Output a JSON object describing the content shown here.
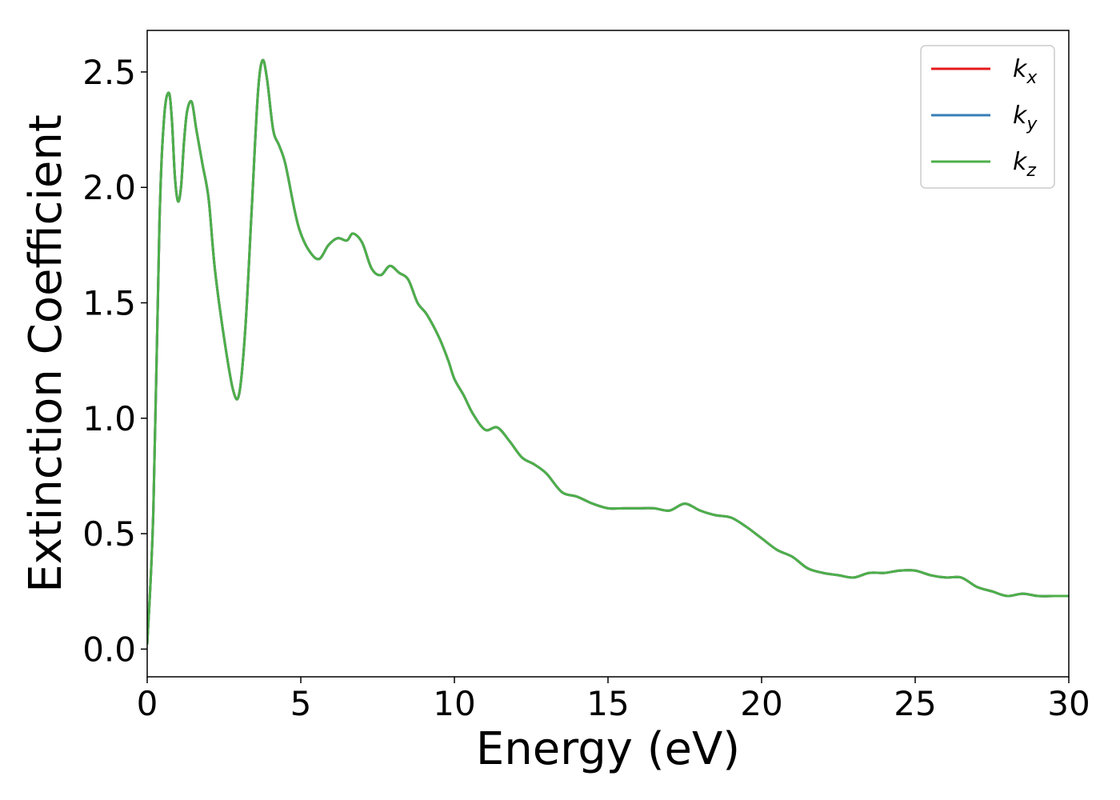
{
  "chart_data": {
    "type": "line",
    "title": "",
    "xlabel": "Energy (eV)",
    "ylabel": "Extinction Coefficient",
    "xlim": [
      0,
      30
    ],
    "ylim": [
      -0.12,
      2.68
    ],
    "xticks": [
      0,
      5,
      10,
      15,
      20,
      25,
      30
    ],
    "xtick_labels": [
      "0",
      "5",
      "10",
      "15",
      "20",
      "25",
      "30"
    ],
    "yticks": [
      0.0,
      0.5,
      1.0,
      1.5,
      2.0,
      2.5
    ],
    "ytick_labels": [
      "0.0",
      "0.5",
      "1.0",
      "1.5",
      "2.0",
      "2.5"
    ],
    "grid": false,
    "legend_position": "top-right",
    "x": [
      0,
      0.2,
      0.4,
      0.55,
      0.7,
      0.8,
      0.9,
      1.0,
      1.1,
      1.2,
      1.3,
      1.45,
      1.6,
      1.8,
      2.0,
      2.2,
      2.5,
      2.8,
      3.0,
      3.2,
      3.4,
      3.6,
      3.75,
      3.9,
      4.1,
      4.3,
      4.5,
      4.8,
      5.0,
      5.3,
      5.6,
      5.9,
      6.2,
      6.5,
      6.7,
      7.0,
      7.3,
      7.6,
      7.9,
      8.2,
      8.5,
      8.8,
      9.1,
      9.5,
      9.8,
      10.0,
      10.3,
      10.6,
      11.0,
      11.4,
      11.8,
      12.2,
      12.6,
      13.0,
      13.5,
      14.0,
      14.5,
      15.0,
      15.5,
      16.0,
      16.5,
      17.0,
      17.5,
      18.0,
      18.5,
      19.0,
      19.5,
      20.0,
      20.5,
      21.0,
      21.5,
      22.0,
      22.5,
      23.0,
      23.5,
      24.0,
      24.5,
      25.0,
      25.5,
      26.0,
      26.5,
      27.0,
      27.5,
      28.0,
      28.5,
      29.0,
      29.5,
      30.0
    ],
    "series": [
      {
        "name": "k_x",
        "color": "#e41a1c",
        "values": [
          0.02,
          0.6,
          1.85,
          2.3,
          2.41,
          2.3,
          2.05,
          1.94,
          2.0,
          2.2,
          2.33,
          2.37,
          2.25,
          2.1,
          1.95,
          1.65,
          1.35,
          1.12,
          1.11,
          1.4,
          1.9,
          2.4,
          2.55,
          2.47,
          2.25,
          2.18,
          2.1,
          1.9,
          1.8,
          1.72,
          1.69,
          1.75,
          1.78,
          1.77,
          1.8,
          1.76,
          1.65,
          1.62,
          1.66,
          1.63,
          1.6,
          1.5,
          1.45,
          1.35,
          1.25,
          1.17,
          1.1,
          1.02,
          0.95,
          0.96,
          0.9,
          0.83,
          0.8,
          0.76,
          0.68,
          0.66,
          0.63,
          0.61,
          0.61,
          0.61,
          0.61,
          0.6,
          0.63,
          0.6,
          0.58,
          0.57,
          0.53,
          0.48,
          0.43,
          0.4,
          0.35,
          0.33,
          0.32,
          0.31,
          0.33,
          0.33,
          0.34,
          0.34,
          0.32,
          0.31,
          0.31,
          0.27,
          0.25,
          0.23,
          0.24,
          0.23,
          0.23,
          0.23
        ]
      },
      {
        "name": "k_y",
        "color": "#377eb8",
        "values": [
          0.02,
          0.6,
          1.85,
          2.3,
          2.41,
          2.3,
          2.05,
          1.94,
          2.0,
          2.2,
          2.33,
          2.37,
          2.25,
          2.1,
          1.95,
          1.65,
          1.35,
          1.12,
          1.11,
          1.4,
          1.9,
          2.4,
          2.55,
          2.47,
          2.25,
          2.18,
          2.1,
          1.9,
          1.8,
          1.72,
          1.69,
          1.75,
          1.78,
          1.77,
          1.8,
          1.76,
          1.65,
          1.62,
          1.66,
          1.63,
          1.6,
          1.5,
          1.45,
          1.35,
          1.25,
          1.17,
          1.1,
          1.02,
          0.95,
          0.96,
          0.9,
          0.83,
          0.8,
          0.76,
          0.68,
          0.66,
          0.63,
          0.61,
          0.61,
          0.61,
          0.61,
          0.6,
          0.63,
          0.6,
          0.58,
          0.57,
          0.53,
          0.48,
          0.43,
          0.4,
          0.35,
          0.33,
          0.32,
          0.31,
          0.33,
          0.33,
          0.34,
          0.34,
          0.32,
          0.31,
          0.31,
          0.27,
          0.25,
          0.23,
          0.24,
          0.23,
          0.23,
          0.23
        ]
      },
      {
        "name": "k_z",
        "color": "#4daf4a",
        "values": [
          0.02,
          0.6,
          1.85,
          2.3,
          2.41,
          2.3,
          2.05,
          1.94,
          2.0,
          2.2,
          2.33,
          2.37,
          2.25,
          2.1,
          1.95,
          1.65,
          1.35,
          1.12,
          1.11,
          1.4,
          1.9,
          2.4,
          2.55,
          2.47,
          2.25,
          2.18,
          2.1,
          1.9,
          1.8,
          1.72,
          1.69,
          1.75,
          1.78,
          1.77,
          1.8,
          1.76,
          1.65,
          1.62,
          1.66,
          1.63,
          1.6,
          1.5,
          1.45,
          1.35,
          1.25,
          1.17,
          1.1,
          1.02,
          0.95,
          0.96,
          0.9,
          0.83,
          0.8,
          0.76,
          0.68,
          0.66,
          0.63,
          0.61,
          0.61,
          0.61,
          0.61,
          0.6,
          0.63,
          0.6,
          0.58,
          0.57,
          0.53,
          0.48,
          0.43,
          0.4,
          0.35,
          0.33,
          0.32,
          0.31,
          0.33,
          0.33,
          0.34,
          0.34,
          0.32,
          0.31,
          0.31,
          0.27,
          0.25,
          0.23,
          0.24,
          0.23,
          0.23,
          0.23
        ]
      }
    ],
    "legend": [
      {
        "base": "k",
        "sub": "x",
        "color": "#e41a1c"
      },
      {
        "base": "k",
        "sub": "y",
        "color": "#377eb8"
      },
      {
        "base": "k",
        "sub": "z",
        "color": "#4daf4a"
      }
    ]
  }
}
